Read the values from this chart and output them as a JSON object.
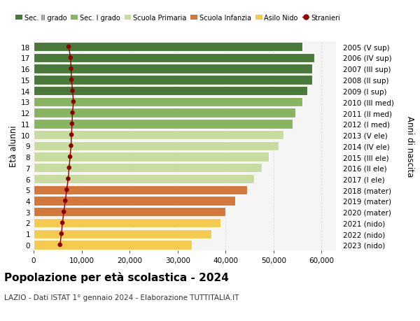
{
  "ages": [
    0,
    1,
    2,
    3,
    4,
    5,
    6,
    7,
    8,
    9,
    10,
    11,
    12,
    13,
    14,
    15,
    16,
    17,
    18
  ],
  "right_labels": [
    "2023 (nido)",
    "2022 (nido)",
    "2021 (nido)",
    "2020 (mater)",
    "2019 (mater)",
    "2018 (mater)",
    "2017 (I ele)",
    "2016 (II ele)",
    "2015 (III ele)",
    "2014 (IV ele)",
    "2013 (V ele)",
    "2012 (I med)",
    "2011 (II med)",
    "2010 (III med)",
    "2009 (I sup)",
    "2008 (II sup)",
    "2007 (III sup)",
    "2006 (IV sup)",
    "2005 (V sup)"
  ],
  "bar_values": [
    33000,
    37000,
    39000,
    40000,
    42000,
    44500,
    46000,
    47500,
    49000,
    51000,
    52000,
    54000,
    54500,
    56000,
    57000,
    58000,
    58000,
    58500,
    56000
  ],
  "bar_colors": [
    "#f5ca4e",
    "#f5ca4e",
    "#f5ca4e",
    "#d4773a",
    "#d4773a",
    "#d4773a",
    "#c8dca0",
    "#c8dca0",
    "#c8dca0",
    "#c8dca0",
    "#c8dca0",
    "#87b560",
    "#87b560",
    "#87b560",
    "#4a7a3a",
    "#4a7a3a",
    "#4a7a3a",
    "#4a7a3a",
    "#4a7a3a"
  ],
  "stranieri_values": [
    5500,
    5800,
    6000,
    6300,
    6600,
    6900,
    7200,
    7400,
    7600,
    7800,
    7900,
    8000,
    8100,
    8300,
    8100,
    7900,
    7800,
    7700,
    7300
  ],
  "legend_labels": [
    "Sec. II grado",
    "Sec. I grado",
    "Scuola Primaria",
    "Scuola Infanzia",
    "Asilo Nido",
    "Stranieri"
  ],
  "legend_colors": [
    "#4a7a3a",
    "#87b560",
    "#c8dca0",
    "#d4773a",
    "#f5ca4e",
    "#8b0000"
  ],
  "ylabel": "Età alunni",
  "right_ylabel": "Anni di nascita",
  "title": "Popolazione per età scolastica - 2024",
  "subtitle": "LAZIO - Dati ISTAT 1° gennaio 2024 - Elaborazione TUTTITALIA.IT",
  "xlim": [
    0,
    63000
  ],
  "xticks": [
    0,
    10000,
    20000,
    30000,
    40000,
    50000,
    60000
  ],
  "xtick_labels": [
    "0",
    "10,000",
    "20,000",
    "30,000",
    "40,000",
    "50,000",
    "60,000"
  ],
  "bar_height": 0.85,
  "background_color": "#ffffff",
  "plot_bg_color": "#f5f5f5",
  "grid_color": "#dddddd"
}
